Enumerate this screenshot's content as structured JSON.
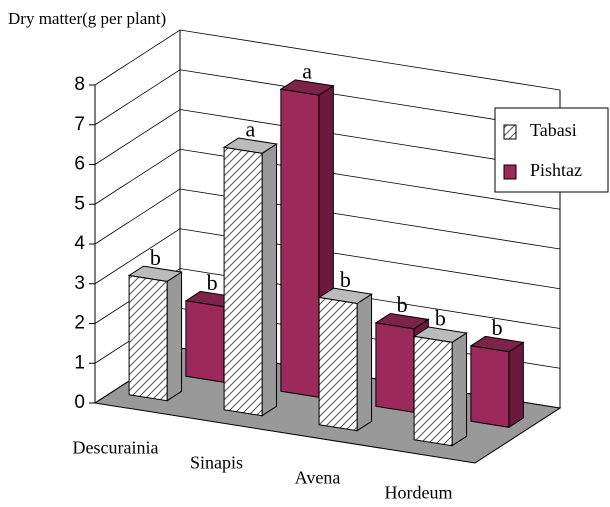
{
  "chart_data": {
    "type": "bar3d",
    "title": "Dry matter(g per plant)",
    "categories": [
      "Descurainia",
      "Sinapis",
      "Avena",
      "Hordeum"
    ],
    "series": [
      {
        "name": "Tabasi",
        "color": "#ffffff",
        "values": [
          3.0,
          6.6,
          3.2,
          2.6
        ],
        "labels": [
          "b",
          "a",
          "b",
          "b"
        ]
      },
      {
        "name": "Pishtaz",
        "color": "#9b2a5a",
        "values": [
          1.9,
          7.6,
          2.1,
          1.9
        ],
        "labels": [
          "b",
          "a",
          "b",
          "b"
        ]
      }
    ],
    "ylim": [
      0,
      8
    ],
    "yticks": [
      0,
      1,
      2,
      3,
      4,
      5,
      6,
      7,
      8
    ],
    "grid": true,
    "legend": "right"
  }
}
